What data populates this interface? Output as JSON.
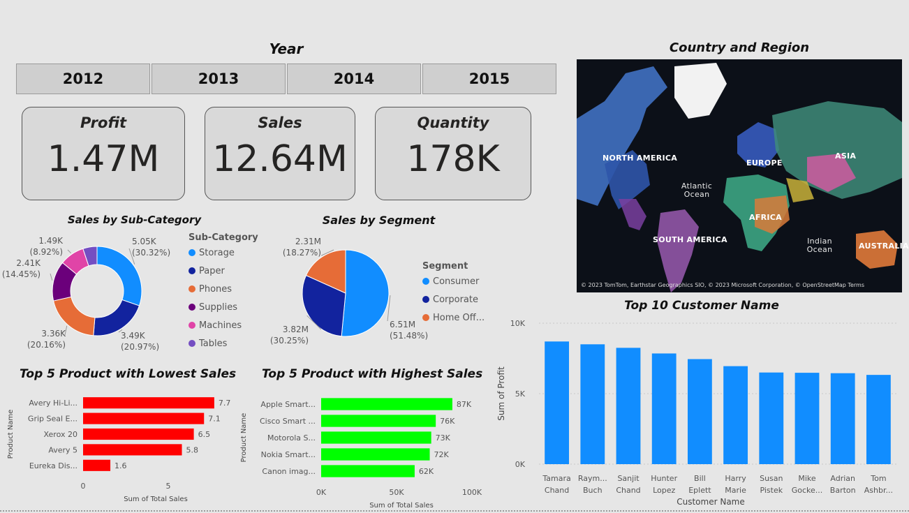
{
  "year_slicer": {
    "title": "Year",
    "options": [
      "2012",
      "2013",
      "2014",
      "2015"
    ]
  },
  "kpis": {
    "profit": {
      "label": "Profit",
      "value": "1.47M"
    },
    "sales": {
      "label": "Sales",
      "value": "12.64M"
    },
    "quantity": {
      "label": "Quantity",
      "value": "178K"
    }
  },
  "map": {
    "title": "Country and Region",
    "labels": {
      "north_america": "NORTH AMERICA",
      "europe": "EUROPE",
      "asia": "ASIA",
      "africa": "AFRICA",
      "south_america": "SOUTH AMERICA",
      "australia": "AUSTRALIA",
      "atlantic": "Atlantic Ocean",
      "indian": "Indian Ocean"
    },
    "attribution": "© 2023 TomTom, Earthstar Geographics SIO, © 2023 Microsoft Corporation, © OpenStreetMap  Terms"
  },
  "chart_data": [
    {
      "id": "sub_category",
      "type": "pie",
      "title": "Sales by Sub-Category",
      "legend_title": "Sub-Category",
      "slices": [
        {
          "name": "Storage",
          "value": 5.05,
          "label": "5.05K",
          "pct": "(30.32%)",
          "color": "#118DFF"
        },
        {
          "name": "Paper",
          "value": 3.49,
          "label": "3.49K",
          "pct": "(20.97%)",
          "color": "#12239E"
        },
        {
          "name": "Phones",
          "value": 3.36,
          "label": "3.36K",
          "pct": "(20.16%)",
          "color": "#E66C37"
        },
        {
          "name": "Supplies",
          "value": 2.41,
          "label": "2.41K",
          "pct": "(14.45%)",
          "color": "#6B007B"
        },
        {
          "name": "Machines",
          "value": 1.49,
          "label": "1.49K",
          "pct": "(8.92%)",
          "color": "#E044A7"
        },
        {
          "name": "Tables",
          "value": 0.85,
          "label": "",
          "pct": "",
          "color": "#744EC2"
        }
      ]
    },
    {
      "id": "segment",
      "type": "pie",
      "title": "Sales by Segment",
      "legend_title": "Segment",
      "slices": [
        {
          "name": "Consumer",
          "value": 6.51,
          "label": "6.51M",
          "pct": "(51.48%)",
          "color": "#118DFF"
        },
        {
          "name": "Corporate",
          "value": 3.82,
          "label": "3.82M",
          "pct": "(30.25%)",
          "color": "#12239E"
        },
        {
          "name": "Home Off...",
          "value": 2.31,
          "label": "2.31M",
          "pct": "(18.27%)",
          "color": "#E66C37"
        }
      ]
    },
    {
      "id": "lowest",
      "type": "bar",
      "orientation": "horizontal",
      "title": "Top 5 Product with Lowest Sales",
      "xlabel": "Sum of Total Sales",
      "ylabel": "Product Name",
      "categories": [
        "Avery Hi-Li...",
        "Grip Seal E...",
        "Xerox 20",
        "Avery 5",
        "Eureka Dis..."
      ],
      "values": [
        7.7,
        7.1,
        6.5,
        5.8,
        1.6
      ],
      "value_labels": [
        "7.7",
        "7.1",
        "6.5",
        "5.8",
        "1.6"
      ],
      "xlim": [
        0,
        10
      ],
      "xticks": [
        "0",
        "5"
      ],
      "color": "#FF0000"
    },
    {
      "id": "highest",
      "type": "bar",
      "orientation": "horizontal",
      "title": "Top 5 Product with Highest Sales",
      "xlabel": "Sum of Total Sales",
      "ylabel": "Product Name",
      "categories": [
        "Apple Smart...",
        "Cisco Smart ...",
        "Motorola S...",
        "Nokia Smart...",
        "Canon imag..."
      ],
      "values": [
        87,
        76,
        73,
        72,
        62
      ],
      "value_labels": [
        "87K",
        "76K",
        "73K",
        "72K",
        "62K"
      ],
      "xlim": [
        0,
        100
      ],
      "xticks": [
        "0K",
        "50K",
        "100K"
      ],
      "color": "#00FF00"
    },
    {
      "id": "customers",
      "type": "bar",
      "orientation": "vertical",
      "title": "Top 10 Customer Name",
      "xlabel": "Customer Name",
      "ylabel": "Sum of Profit",
      "categories": [
        [
          "Tamara",
          "Chand"
        ],
        [
          "Raym...",
          "Buch"
        ],
        [
          "Sanjit",
          "Chand"
        ],
        [
          "Hunter",
          "Lopez"
        ],
        [
          "Bill",
          "Eplett"
        ],
        [
          "Harry",
          "Marie"
        ],
        [
          "Susan",
          "Pistek"
        ],
        [
          "Mike",
          "Gocke..."
        ],
        [
          "Adrian",
          "Barton"
        ],
        [
          "Tom",
          "Ashbr..."
        ]
      ],
      "values": [
        8700,
        8500,
        8250,
        7850,
        7450,
        6950,
        6500,
        6480,
        6450,
        6330
      ],
      "ylim": [
        0,
        10000
      ],
      "yticks": [
        "0K",
        "5K",
        "10K"
      ],
      "color": "#118DFF"
    }
  ]
}
